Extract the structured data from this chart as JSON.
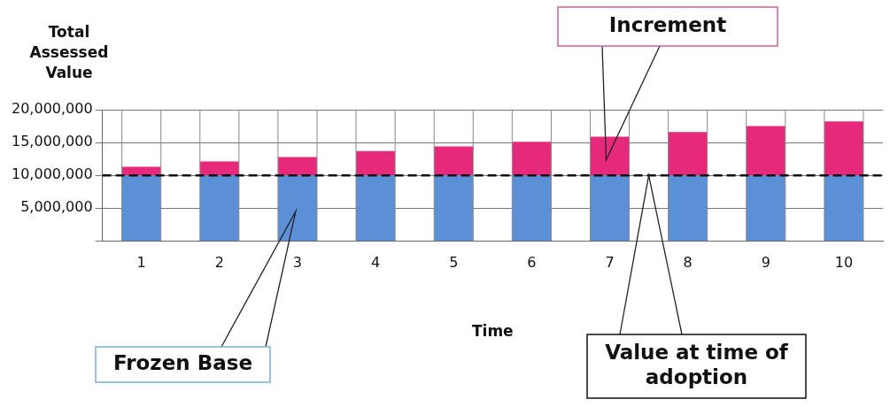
{
  "chart_data": {
    "type": "bar",
    "stacked": true,
    "ylabel": "Total Assessed Value",
    "xlabel": "Time",
    "categories": [
      "1",
      "2",
      "3",
      "4",
      "5",
      "6",
      "7",
      "8",
      "9",
      "10"
    ],
    "series": [
      {
        "color": "#5b8fd6",
        "values": [
          10000000,
          10000000,
          10000000,
          10000000,
          10000000,
          10000000,
          10000000,
          10000000,
          10000000,
          10000000
        ]
      },
      {
        "color": "#e6297a",
        "values": [
          1300000,
          2100000,
          2800000,
          3700000,
          4400000,
          5100000,
          5900000,
          6600000,
          7500000,
          8200000
        ]
      }
    ],
    "ylim": [
      0,
      20000000
    ],
    "yticks": [
      {
        "value": 0,
        "label": null
      },
      {
        "value": 5000000,
        "label": "5,000,000"
      },
      {
        "value": 10000000,
        "label": "10,000,000"
      },
      {
        "value": 15000000,
        "label": "15,000,000"
      },
      {
        "value": 20000000,
        "label": "20,000,000"
      }
    ],
    "grid": true,
    "ref_lines": [
      {
        "axis": "y",
        "value": 10000000,
        "color": "#111111",
        "line_style": "dashed"
      }
    ],
    "annotations": [
      "Frozen Base",
      "Increment",
      "Value at time of adoption"
    ]
  }
}
